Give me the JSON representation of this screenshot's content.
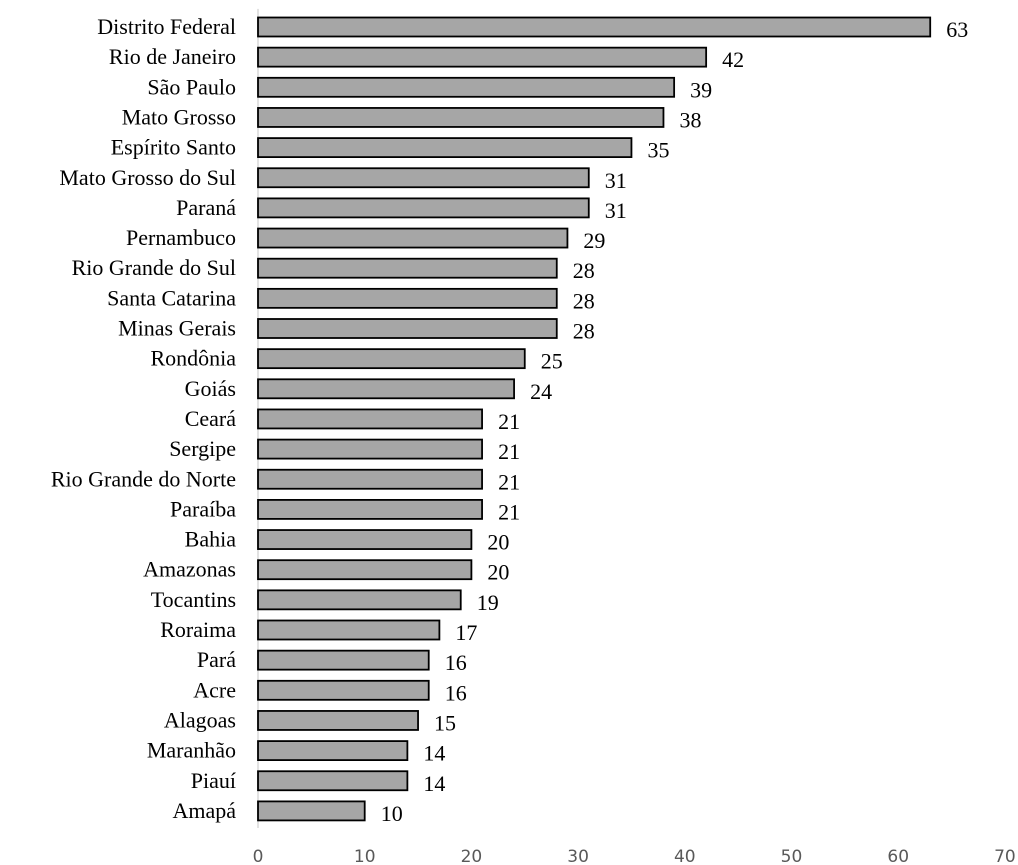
{
  "chart_data": {
    "type": "bar",
    "orientation": "horizontal",
    "categories": [
      "Distrito Federal",
      "Rio de Janeiro",
      "São Paulo",
      "Mato Grosso",
      "Espírito Santo",
      "Mato Grosso do Sul",
      "Paraná",
      "Pernambuco",
      "Rio Grande do Sul",
      "Santa Catarina",
      "Minas Gerais",
      "Rondônia",
      "Goiás",
      "Ceará",
      "Sergipe",
      "Rio Grande do Norte",
      "Paraíba",
      "Bahia",
      "Amazonas",
      "Tocantins",
      "Roraima",
      "Pará",
      "Acre",
      "Alagoas",
      "Maranhão",
      "Piauí",
      "Amapá"
    ],
    "values": [
      63,
      42,
      39,
      38,
      35,
      31,
      31,
      29,
      28,
      28,
      28,
      25,
      24,
      21,
      21,
      21,
      21,
      20,
      20,
      19,
      17,
      16,
      16,
      15,
      14,
      14,
      10
    ],
    "xlim": [
      0,
      70
    ],
    "xticks": [
      "0",
      "10",
      "20",
      "30",
      "40",
      "50",
      "60",
      "70"
    ],
    "grid": false,
    "legend": "none",
    "colors": {
      "bar_fill": "#a6a6a6",
      "bar_stroke": "#000000",
      "axis": "#d9d9d9"
    }
  }
}
